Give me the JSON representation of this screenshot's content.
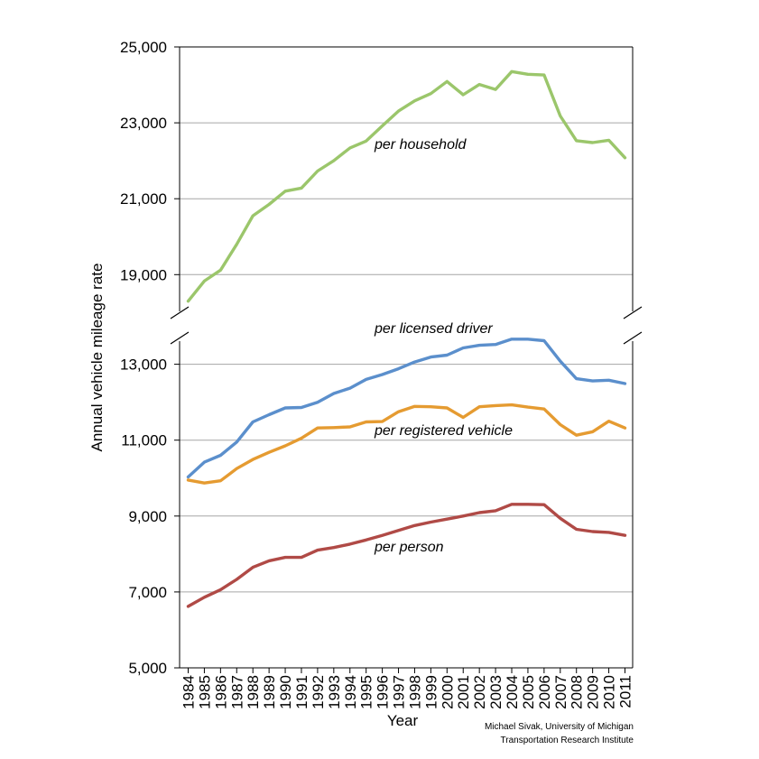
{
  "chart_data": {
    "type": "line",
    "title": "",
    "xlabel": "Year",
    "ylabel": "Annual vehicle mileage rate",
    "broken_axis": true,
    "lower_segment_ylim": [
      5000,
      13500
    ],
    "upper_segment_ylim": [
      17500,
      25000
    ],
    "y_ticks": [
      "5,000",
      "7,000",
      "9,000",
      "11,000",
      "13,000",
      "19,000",
      "21,000",
      "23,000",
      "25,000"
    ],
    "x": [
      "1984",
      "1985",
      "1986",
      "1987",
      "1988",
      "1989",
      "1990",
      "1991",
      "1992",
      "1993",
      "1994",
      "1995",
      "1996",
      "1997",
      "1998",
      "1999",
      "2000",
      "2001",
      "2002",
      "2003",
      "2004",
      "2005",
      "2006",
      "2007",
      "2008",
      "2009",
      "2010",
      "2011"
    ],
    "grid": true,
    "legend": "none (series labelled on chart)",
    "series": [
      {
        "name": "per household",
        "color": "#9bc66b",
        "segment": "upper",
        "values": [
          18300,
          18830,
          19120,
          19800,
          20550,
          20850,
          21200,
          21280,
          21730,
          22000,
          22340,
          22520,
          22920,
          23310,
          23580,
          23770,
          24090,
          23740,
          24010,
          23880,
          24350,
          24280,
          24260,
          23180,
          22530,
          22480,
          22540,
          22080
        ]
      },
      {
        "name": "per licensed driver",
        "color": "#5b8fcc",
        "segment": "lower",
        "values": [
          10030,
          10420,
          10600,
          10950,
          11480,
          11670,
          11850,
          11860,
          12000,
          12230,
          12370,
          12600,
          12730,
          12880,
          13060,
          13190,
          13240,
          13430,
          13500,
          13520,
          13660,
          13660,
          13620,
          13080,
          12620,
          12560,
          12580,
          12490
        ]
      },
      {
        "name": "per registered vehicle",
        "color": "#e59b31",
        "segment": "lower",
        "values": [
          9950,
          9870,
          9930,
          10250,
          10490,
          10680,
          10850,
          11050,
          11320,
          11330,
          11350,
          11480,
          11490,
          11750,
          11890,
          11880,
          11850,
          11600,
          11880,
          11910,
          11930,
          11870,
          11820,
          11410,
          11130,
          11220,
          11500,
          11320
        ]
      },
      {
        "name": "per person",
        "color": "#b04a46",
        "segment": "lower",
        "values": [
          6620,
          6860,
          7060,
          7330,
          7650,
          7820,
          7910,
          7910,
          8100,
          8170,
          8260,
          8370,
          8490,
          8620,
          8750,
          8840,
          8920,
          9000,
          9090,
          9140,
          9310,
          9310,
          9300,
          8940,
          8650,
          8590,
          8570,
          8490
        ]
      }
    ],
    "annotations": [
      "per household",
      "per licensed driver",
      "per registered vehicle",
      "per person"
    ]
  },
  "credit": {
    "line1": "Michael Sivak, University of Michigan",
    "line2": "Transportation Research Institute"
  }
}
